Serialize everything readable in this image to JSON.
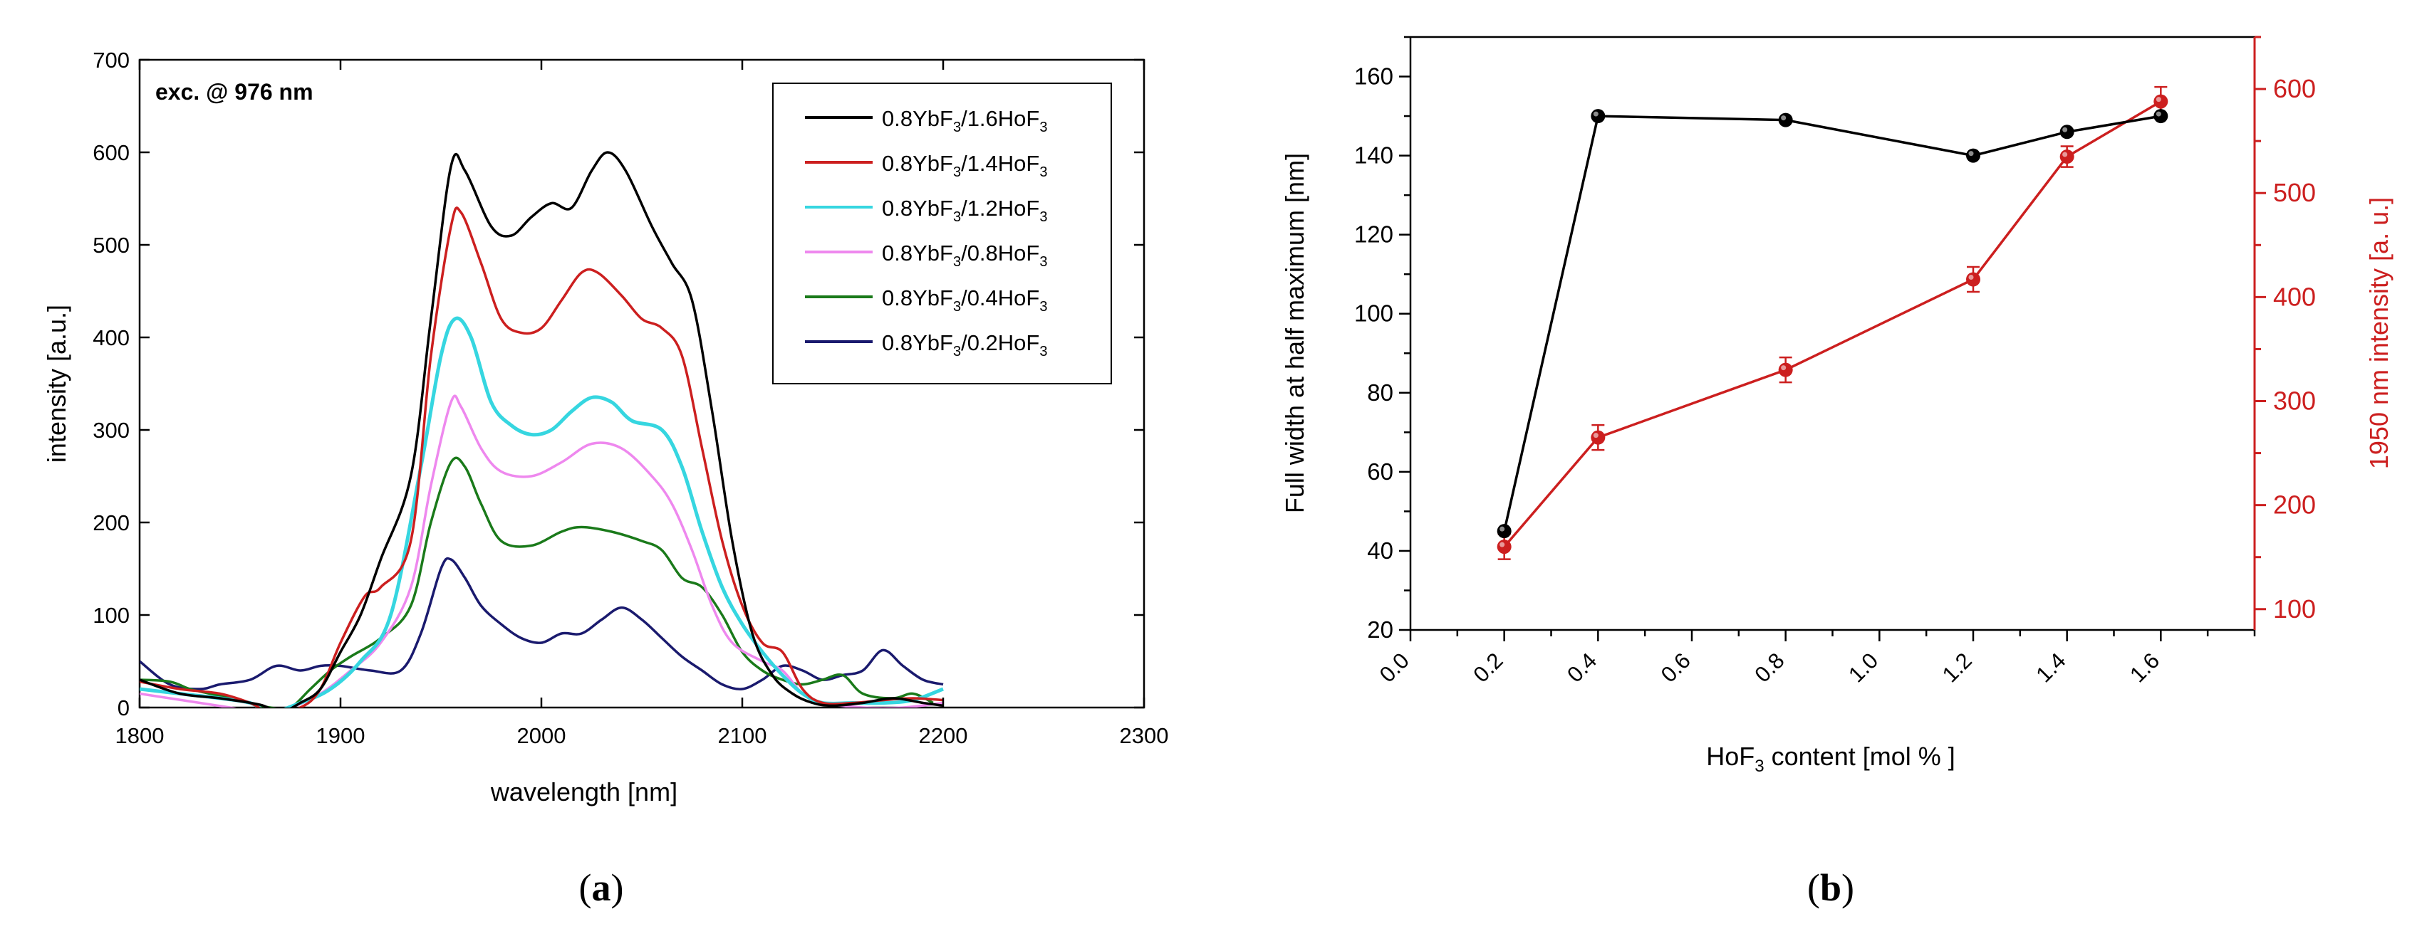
{
  "colors": {
    "red_axis": "#cc1f1f",
    "black": "#000000"
  },
  "panel_a": {
    "caption": {
      "open": "(",
      "letter": "a",
      "close": ")"
    },
    "chart_data": {
      "type": "line",
      "annotation": "exc. @ 976 nm",
      "xlabel": "wavelength [nm]",
      "ylabel": "intensity [a.u.]",
      "xlim": [
        1800,
        2300
      ],
      "ylim": [
        0,
        700
      ],
      "xticks": [
        "1800",
        "1900",
        "2000",
        "2100",
        "2200",
        "2300"
      ],
      "yticks": [
        "0",
        "100",
        "200",
        "300",
        "400",
        "500",
        "600",
        "700"
      ],
      "legend_position": "top-right",
      "series": [
        {
          "name": "0.8YbF3/1.6HoF3",
          "prefix": "0.8YbF",
          "sub1": "3",
          "mid": "/1.6HoF",
          "sub2": "3",
          "color": "#000000",
          "points": [
            [
              1800,
              30
            ],
            [
              1820,
              15
            ],
            [
              1840,
              10
            ],
            [
              1860,
              3
            ],
            [
              1870,
              -5
            ],
            [
              1880,
              5
            ],
            [
              1890,
              20
            ],
            [
              1900,
              60
            ],
            [
              1910,
              100
            ],
            [
              1920,
              160
            ],
            [
              1935,
              250
            ],
            [
              1945,
              420
            ],
            [
              1955,
              585
            ],
            [
              1962,
              580
            ],
            [
              1975,
              520
            ],
            [
              1985,
              510
            ],
            [
              1995,
              530
            ],
            [
              2005,
              545
            ],
            [
              2015,
              540
            ],
            [
              2025,
              580
            ],
            [
              2033,
              600
            ],
            [
              2042,
              580
            ],
            [
              2055,
              520
            ],
            [
              2065,
              480
            ],
            [
              2075,
              440
            ],
            [
              2085,
              320
            ],
            [
              2095,
              180
            ],
            [
              2105,
              80
            ],
            [
              2115,
              35
            ],
            [
              2125,
              15
            ],
            [
              2135,
              5
            ],
            [
              2145,
              2
            ],
            [
              2160,
              5
            ],
            [
              2175,
              10
            ],
            [
              2190,
              5
            ],
            [
              2200,
              2
            ]
          ]
        },
        {
          "name": "0.8YbF3/1.4HoF3",
          "prefix": "0.8YbF",
          "sub1": "3",
          "mid": "/1.4HoF",
          "sub2": "3",
          "color": "#cc1f1f",
          "points": [
            [
              1800,
              28
            ],
            [
              1820,
              20
            ],
            [
              1840,
              15
            ],
            [
              1855,
              5
            ],
            [
              1865,
              -5
            ],
            [
              1880,
              0
            ],
            [
              1890,
              20
            ],
            [
              1900,
              70
            ],
            [
              1912,
              120
            ],
            [
              1920,
              130
            ],
            [
              1935,
              180
            ],
            [
              1945,
              380
            ],
            [
              1955,
              520
            ],
            [
              1960,
              535
            ],
            [
              1970,
              480
            ],
            [
              1980,
              420
            ],
            [
              1990,
              405
            ],
            [
              2000,
              410
            ],
            [
              2010,
              440
            ],
            [
              2020,
              470
            ],
            [
              2028,
              470
            ],
            [
              2040,
              445
            ],
            [
              2050,
              420
            ],
            [
              2060,
              410
            ],
            [
              2070,
              380
            ],
            [
              2080,
              280
            ],
            [
              2090,
              180
            ],
            [
              2100,
              110
            ],
            [
              2110,
              70
            ],
            [
              2120,
              60
            ],
            [
              2130,
              20
            ],
            [
              2140,
              5
            ],
            [
              2155,
              5
            ],
            [
              2170,
              8
            ],
            [
              2185,
              10
            ],
            [
              2200,
              8
            ]
          ]
        },
        {
          "name": "0.8YbF3/1.2HoF3",
          "prefix": "0.8YbF",
          "sub1": "3",
          "mid": "/1.2HoF",
          "sub2": "3",
          "color": "#36d6e0",
          "points": [
            [
              1800,
              20
            ],
            [
              1820,
              15
            ],
            [
              1840,
              10
            ],
            [
              1855,
              5
            ],
            [
              1865,
              -5
            ],
            [
              1880,
              5
            ],
            [
              1895,
              20
            ],
            [
              1910,
              50
            ],
            [
              1925,
              100
            ],
            [
              1940,
              260
            ],
            [
              1950,
              380
            ],
            [
              1957,
              420
            ],
            [
              1965,
              400
            ],
            [
              1975,
              330
            ],
            [
              1985,
              305
            ],
            [
              1995,
              295
            ],
            [
              2005,
              300
            ],
            [
              2015,
              320
            ],
            [
              2025,
              335
            ],
            [
              2035,
              330
            ],
            [
              2045,
              310
            ],
            [
              2060,
              300
            ],
            [
              2070,
              260
            ],
            [
              2080,
              190
            ],
            [
              2090,
              130
            ],
            [
              2100,
              90
            ],
            [
              2110,
              60
            ],
            [
              2120,
              35
            ],
            [
              2130,
              15
            ],
            [
              2140,
              5
            ],
            [
              2155,
              5
            ],
            [
              2170,
              5
            ],
            [
              2185,
              8
            ],
            [
              2200,
              20
            ]
          ]
        },
        {
          "name": "0.8YbF3/0.8HoF3",
          "prefix": "0.8YbF",
          "sub1": "3",
          "mid": "/0.8HoF",
          "sub2": "3",
          "color": "#ee88ee",
          "points": [
            [
              1800,
              15
            ],
            [
              1815,
              10
            ],
            [
              1830,
              5
            ],
            [
              1845,
              0
            ],
            [
              1860,
              -5
            ],
            [
              1875,
              0
            ],
            [
              1890,
              15
            ],
            [
              1905,
              40
            ],
            [
              1920,
              70
            ],
            [
              1935,
              130
            ],
            [
              1945,
              240
            ],
            [
              1955,
              330
            ],
            [
              1960,
              325
            ],
            [
              1970,
              280
            ],
            [
              1980,
              255
            ],
            [
              1995,
              250
            ],
            [
              2010,
              265
            ],
            [
              2025,
              285
            ],
            [
              2040,
              280
            ],
            [
              2055,
              250
            ],
            [
              2065,
              220
            ],
            [
              2075,
              170
            ],
            [
              2085,
              110
            ],
            [
              2095,
              70
            ],
            [
              2110,
              50
            ],
            [
              2120,
              40
            ],
            [
              2130,
              15
            ],
            [
              2140,
              5
            ],
            [
              2160,
              0
            ],
            [
              2180,
              0
            ],
            [
              2200,
              5
            ]
          ]
        },
        {
          "name": "0.8YbF3/0.4HoF3",
          "prefix": "0.8YbF",
          "sub1": "3",
          "mid": "/0.4HoF",
          "sub2": "3",
          "color": "#1a7a1a",
          "points": [
            [
              1800,
              30
            ],
            [
              1815,
              28
            ],
            [
              1825,
              20
            ],
            [
              1835,
              15
            ],
            [
              1845,
              10
            ],
            [
              1855,
              5
            ],
            [
              1865,
              0
            ],
            [
              1875,
              0
            ],
            [
              1885,
              20
            ],
            [
              1895,
              40
            ],
            [
              1905,
              55
            ],
            [
              1920,
              75
            ],
            [
              1935,
              110
            ],
            [
              1945,
              200
            ],
            [
              1955,
              265
            ],
            [
              1962,
              260
            ],
            [
              1970,
              220
            ],
            [
              1980,
              180
            ],
            [
              1995,
              175
            ],
            [
              2010,
              190
            ],
            [
              2020,
              195
            ],
            [
              2035,
              190
            ],
            [
              2050,
              180
            ],
            [
              2060,
              170
            ],
            [
              2070,
              140
            ],
            [
              2080,
              130
            ],
            [
              2090,
              100
            ],
            [
              2100,
              60
            ],
            [
              2110,
              40
            ],
            [
              2120,
              30
            ],
            [
              2130,
              25
            ],
            [
              2140,
              30
            ],
            [
              2150,
              35
            ],
            [
              2160,
              15
            ],
            [
              2175,
              10
            ],
            [
              2185,
              15
            ],
            [
              2195,
              5
            ]
          ]
        },
        {
          "name": "0.8YbF3/0.2HoF3",
          "prefix": "0.8YbF",
          "sub1": "3",
          "mid": "/0.2HoF",
          "sub2": "3",
          "color": "#1a1a6e",
          "points": [
            [
              1800,
              50
            ],
            [
              1815,
              25
            ],
            [
              1830,
              20
            ],
            [
              1840,
              25
            ],
            [
              1855,
              30
            ],
            [
              1868,
              45
            ],
            [
              1880,
              40
            ],
            [
              1890,
              45
            ],
            [
              1900,
              45
            ],
            [
              1915,
              40
            ],
            [
              1930,
              40
            ],
            [
              1940,
              80
            ],
            [
              1950,
              150
            ],
            [
              1955,
              160
            ],
            [
              1962,
              140
            ],
            [
              1970,
              110
            ],
            [
              1980,
              90
            ],
            [
              1990,
              75
            ],
            [
              2000,
              70
            ],
            [
              2010,
              80
            ],
            [
              2020,
              80
            ],
            [
              2030,
              95
            ],
            [
              2040,
              108
            ],
            [
              2050,
              95
            ],
            [
              2060,
              75
            ],
            [
              2070,
              55
            ],
            [
              2080,
              40
            ],
            [
              2090,
              25
            ],
            [
              2100,
              20
            ],
            [
              2110,
              30
            ],
            [
              2120,
              45
            ],
            [
              2130,
              40
            ],
            [
              2140,
              30
            ],
            [
              2150,
              35
            ],
            [
              2160,
              40
            ],
            [
              2170,
              62
            ],
            [
              2180,
              45
            ],
            [
              2190,
              30
            ],
            [
              2200,
              25
            ]
          ]
        }
      ]
    }
  },
  "panel_b": {
    "caption": {
      "open": "(",
      "letter": "b",
      "close": ")"
    },
    "chart_data": {
      "type": "scatter",
      "xlabel_pre": "HoF",
      "xlabel_sub": "3",
      "xlabel_post": " content [mol % ]",
      "ylabel": "Full width at half maximum [nm]",
      "y2label": "1950 nm intensity [a. u.]",
      "xlim": [
        0,
        1.8
      ],
      "ylim": [
        20,
        170
      ],
      "y2lim": [
        80,
        650
      ],
      "xticks": [
        "0.0",
        "0.2",
        "0.4",
        "0.6",
        "0.8",
        "1.0",
        "1.2",
        "1.4",
        "1.6"
      ],
      "yticks": [
        "20",
        "40",
        "60",
        "80",
        "100",
        "120",
        "140",
        "160"
      ],
      "y2ticks": [
        "100",
        "200",
        "300",
        "400",
        "500",
        "600"
      ],
      "series": [
        {
          "name": "FWHM",
          "axis": "left",
          "color": "#000000",
          "x": [
            0.2,
            0.4,
            0.8,
            1.2,
            1.4,
            1.6
          ],
          "y": [
            45,
            150,
            149,
            140,
            146,
            150
          ],
          "err": [
            0,
            0,
            0,
            0,
            0,
            0
          ]
        },
        {
          "name": "1950 nm intensity",
          "axis": "right",
          "color": "#cc1f1f",
          "x": [
            0.2,
            0.4,
            0.8,
            1.2,
            1.4,
            1.6
          ],
          "y": [
            160,
            265,
            330,
            417,
            535,
            588
          ],
          "err": [
            12,
            12,
            12,
            12,
            10,
            14
          ]
        }
      ]
    }
  }
}
